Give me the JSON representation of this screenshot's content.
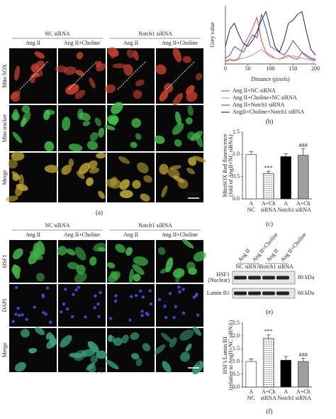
{
  "imaging": [
    {
      "groups": [
        "NC siRNA",
        "Notch1 siRNA"
      ],
      "columns": [
        "Ang II",
        "Ang II+Choline",
        "Ang II",
        "Ang II+Choline"
      ],
      "rows": [
        "Mito SOX",
        "Mito tracker",
        "Merge"
      ],
      "row_colors": [
        "#d2352b",
        "#3cb33c",
        "#222222"
      ],
      "tints": [
        "#c8402e",
        "#3fbf4a",
        "#b8a030"
      ],
      "scale_bar": "50µm",
      "caption": "(a)"
    },
    {
      "groups": [
        "NC siRNA",
        "Notch1 siRNA"
      ],
      "columns": [
        "Ang II",
        "Ang II+Choline",
        "Ang II",
        "Ang II+Choline"
      ],
      "rows": [
        "HSF1",
        "DAPI",
        "Merge"
      ],
      "row_colors": [
        "#3cb33c",
        "#3a6ad0",
        "#222222"
      ],
      "tints": [
        "#3fb34a",
        "#4050e0",
        "#3aa080"
      ],
      "scale_bar": "50µm",
      "caption": "(d)"
    }
  ],
  "chart_data": [
    {
      "type": "line",
      "ylabel": "Grey value",
      "xlabel": "Distance (pixels)",
      "caption": "(b)",
      "x": [
        0,
        10,
        20,
        30,
        40,
        50,
        60,
        70,
        80,
        90,
        100,
        110,
        120,
        130,
        140,
        150,
        160,
        170,
        180,
        190,
        200
      ],
      "xlim": [
        0,
        200
      ],
      "xticks": [
        0,
        50,
        100,
        150,
        200
      ],
      "ylim": [
        0,
        100
      ],
      "series": [
        {
          "name": "Ang II+NC siRNA",
          "color": "#e03030",
          "values": [
            5,
            8,
            6,
            10,
            30,
            45,
            60,
            80,
            40,
            20,
            15,
            10,
            8,
            12,
            15,
            10,
            8,
            20,
            12,
            8,
            6
          ]
        },
        {
          "name": "Ang II+Choline+NC siRNA",
          "color": "#999999",
          "values": [
            4,
            6,
            5,
            8,
            10,
            12,
            15,
            20,
            25,
            18,
            12,
            10,
            8,
            10,
            12,
            14,
            12,
            10,
            8,
            6,
            5
          ]
        },
        {
          "name": "Ang II+Notch1 siRNA",
          "color": "#2a3ad0",
          "values": [
            10,
            15,
            30,
            25,
            20,
            35,
            50,
            45,
            85,
            60,
            30,
            25,
            20,
            15,
            25,
            40,
            30,
            20,
            15,
            10,
            8
          ]
        },
        {
          "name": "AngII+Choline+Notch1 siRNA",
          "color": "#111111",
          "values": [
            30,
            60,
            70,
            50,
            35,
            30,
            40,
            55,
            75,
            90,
            60,
            30,
            20,
            40,
            70,
            75,
            85,
            90,
            55,
            25,
            15
          ]
        }
      ]
    },
    {
      "type": "bar",
      "ylabel": [
        "MitoSOX Red fluorescence",
        "(fold of AngII+NC siRNA)"
      ],
      "caption": "(c)",
      "categories": [
        "A",
        "A+Ch",
        "A",
        "A+Ch"
      ],
      "groups": [
        "NC",
        "siRNA",
        "Notch1",
        "siRNA"
      ],
      "values": [
        1.0,
        0.57,
        0.95,
        0.98
      ],
      "errors": [
        0.06,
        0.05,
        0.06,
        0.15
      ],
      "annotations": [
        null,
        "***",
        null,
        "###"
      ],
      "fills": [
        "#ffffff",
        "#ffffff",
        "#000000",
        "#9e9e9e"
      ],
      "patterns": [
        null,
        "dots",
        null,
        null
      ],
      "ylim": [
        0,
        1.5
      ],
      "yticks": [
        {
          "value": 0,
          "label": "0.0"
        },
        {
          "value": 0.5,
          "label": "0.5"
        },
        {
          "value": 1,
          "label": "1.0"
        },
        {
          "value": 1.5,
          "label": "1.5"
        }
      ]
    },
    {
      "type": "bar",
      "ylabel": [
        "HSF1/Lamin B1",
        "(relative to AngII+NC siRNA)"
      ],
      "caption": "(f)",
      "categories": [
        "A",
        "A+Ch",
        "A",
        "A+Ch"
      ],
      "groups": [
        "NC",
        "siRNA",
        "Notch1",
        "siRNA"
      ],
      "values": [
        1.0,
        1.9,
        1.05,
        1.0
      ],
      "errors": [
        0.1,
        0.15,
        0.15,
        0.13
      ],
      "annotations": [
        null,
        "***",
        null,
        "###"
      ],
      "fills": [
        "#ffffff",
        "#ffffff",
        "#000000",
        "#9e9e9e"
      ],
      "patterns": [
        null,
        "dots",
        null,
        null
      ],
      "ylim": [
        0,
        2.5
      ],
      "yticks": [
        {
          "value": 0,
          "label": "0.0"
        },
        {
          "value": 0.5,
          "label": "0.5"
        },
        {
          "value": 1,
          "label": "1.0"
        },
        {
          "value": 1.5,
          "label": "1.5"
        },
        {
          "value": 2,
          "label": "2.0"
        },
        {
          "value": 2.5,
          "label": "2.5"
        }
      ]
    }
  ],
  "blot": {
    "columns": [
      "Ang II",
      "Ang II+Choline",
      "Ang II",
      "Ang II+Choline"
    ],
    "groups": [
      "NC siRNA",
      "Notch1 siRNA"
    ],
    "rows": [
      "HSF1\n(Nuclear)",
      "Lamin B1"
    ],
    "sizes": [
      "80 kDa",
      "68 kDa"
    ],
    "caption": "(e)"
  }
}
